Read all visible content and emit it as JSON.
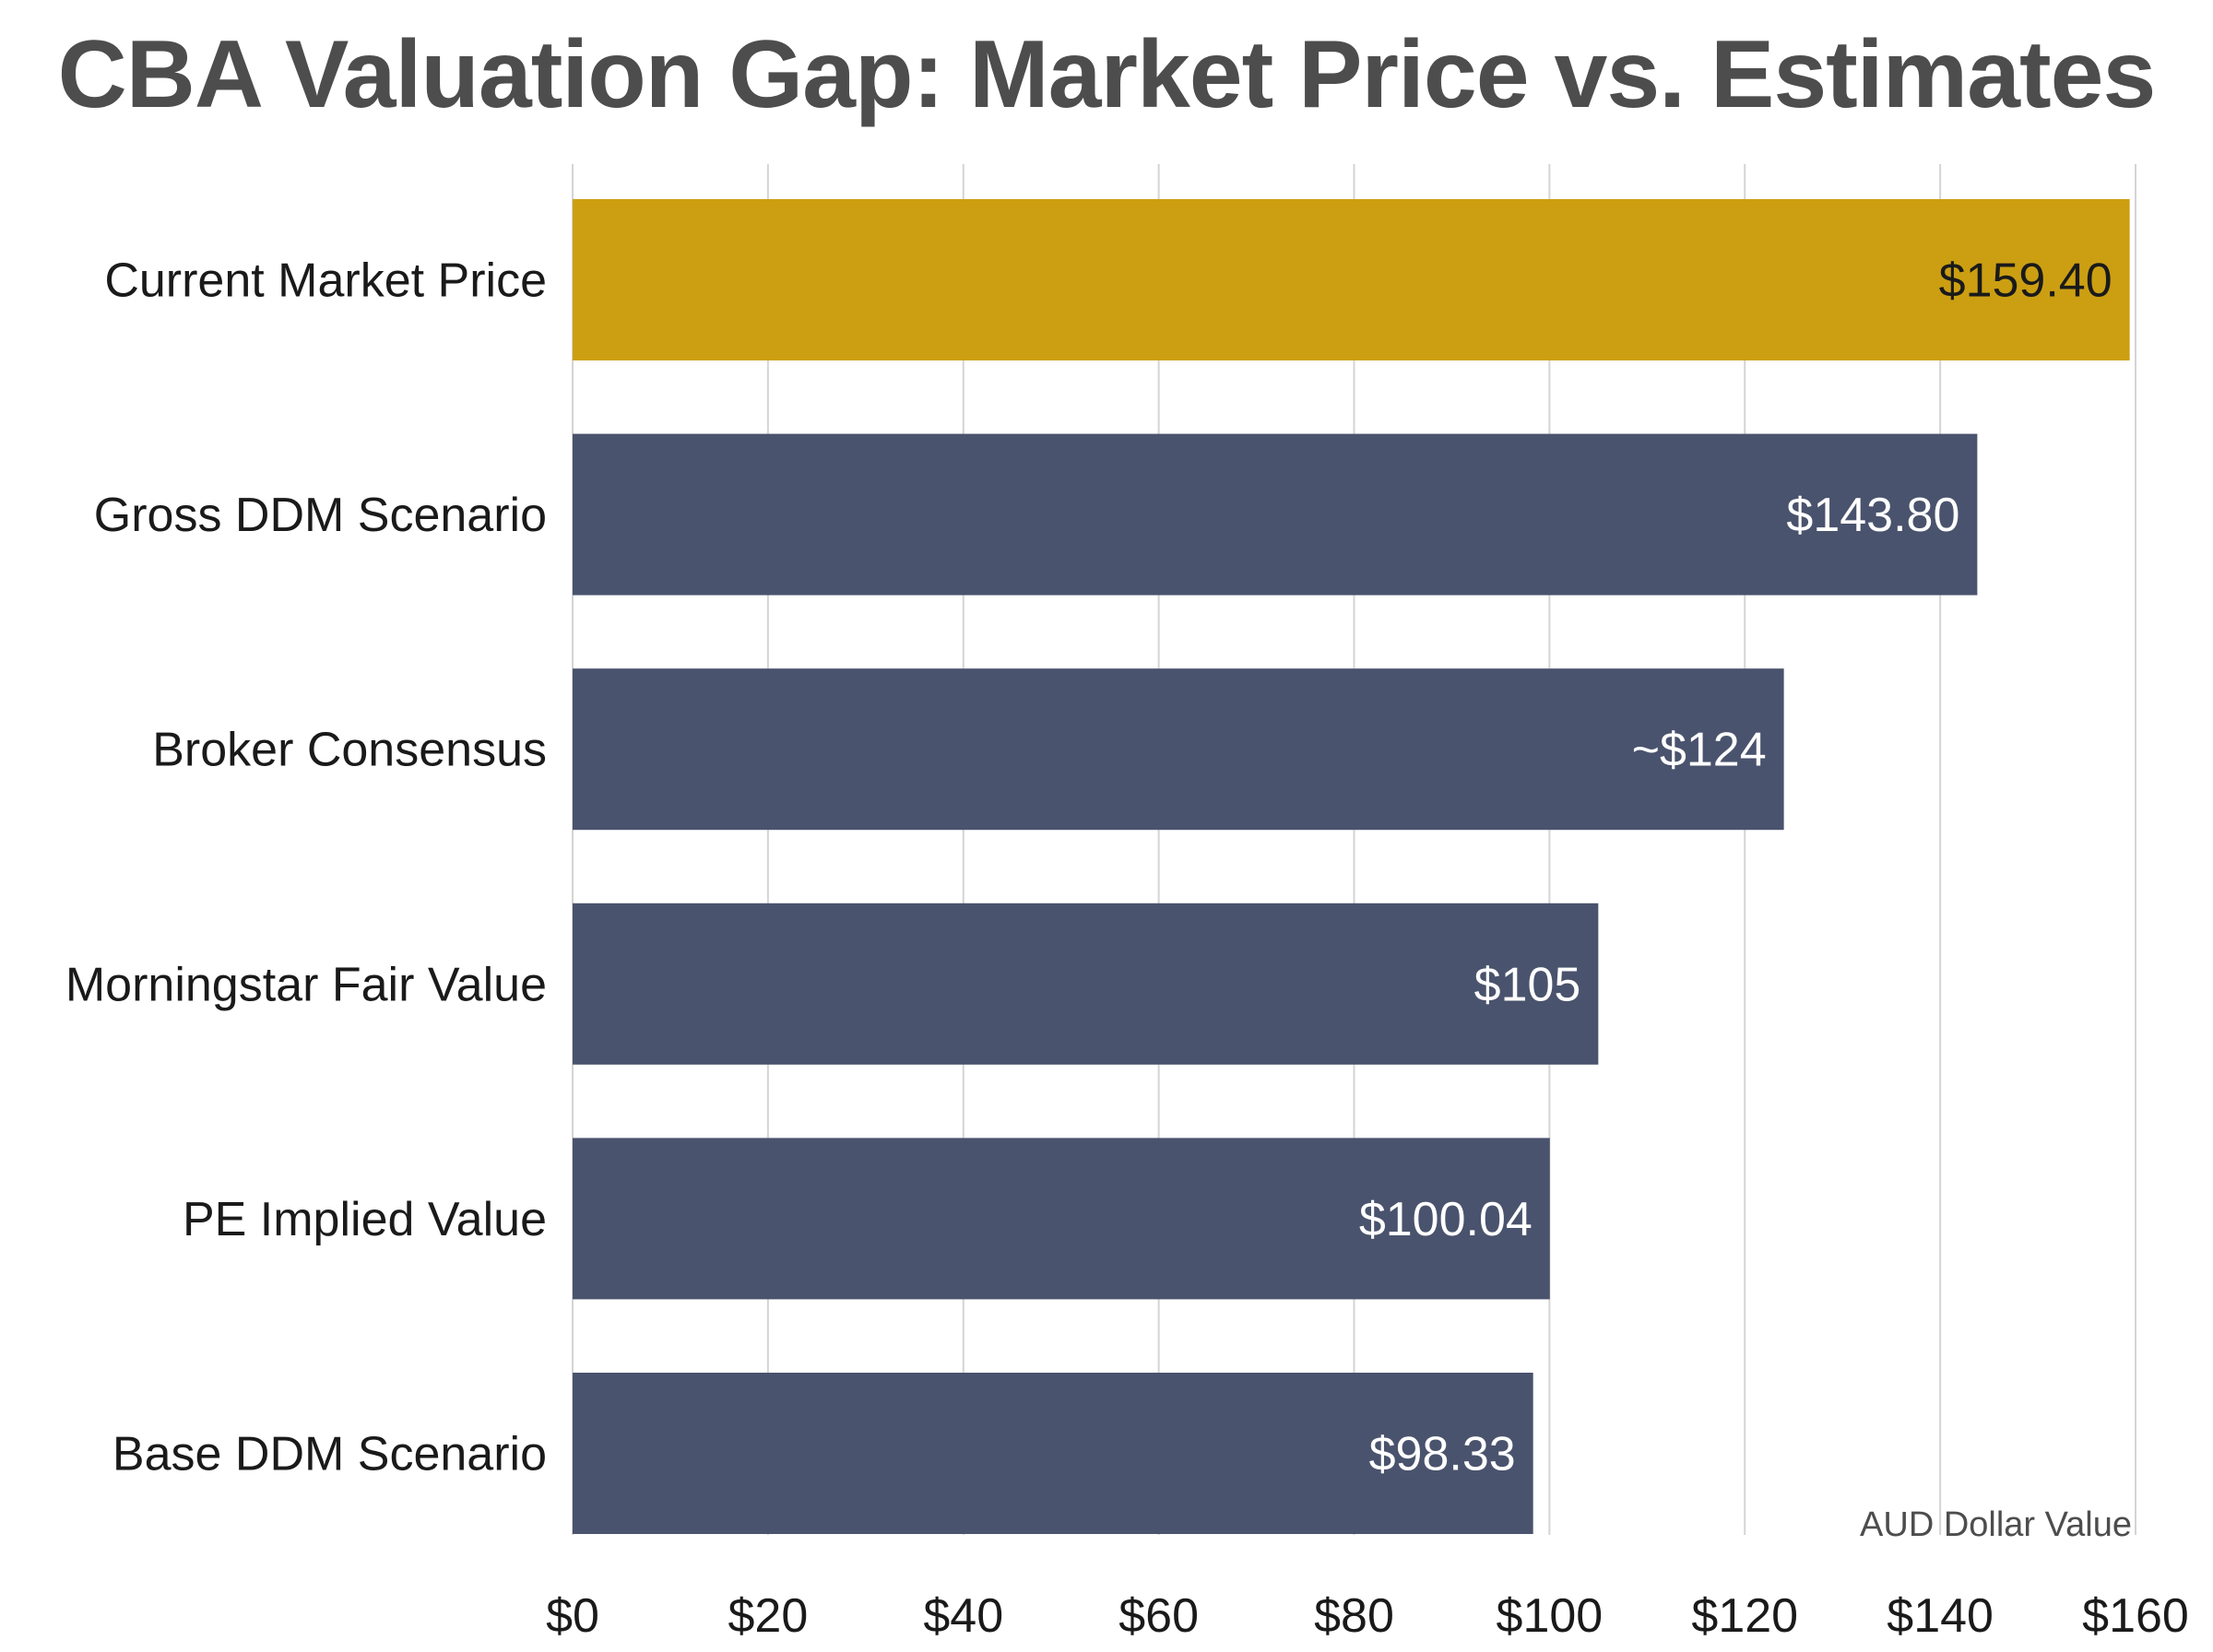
{
  "chart_data": {
    "type": "bar",
    "orientation": "horizontal",
    "title": "CBA Valuation Gap: Market Price vs. Estimates",
    "xlabel": "AUD Dollar Value",
    "xlim": [
      0,
      160
    ],
    "x_ticks": [
      0,
      20,
      40,
      60,
      80,
      100,
      120,
      140,
      160
    ],
    "x_tick_labels": [
      "$0",
      "$20",
      "$40",
      "$60",
      "$80",
      "$100",
      "$120",
      "$140",
      "$160"
    ],
    "grid": "vertical",
    "categories": [
      "Current Market Price",
      "Gross DDM Scenario",
      "Broker Consensus",
      "Morningstar Fair Value",
      "PE Implied Value",
      "Base DDM Scenario"
    ],
    "values": [
      159.4,
      143.8,
      124,
      105,
      100.04,
      98.33
    ],
    "data_labels": [
      "$159.40",
      "$143.80",
      "~$124",
      "$105",
      "$100.04",
      "$98.33"
    ],
    "colors": {
      "highlight": "#cc9f12",
      "default": "#4a536d",
      "highlight_label": "#1a1a1a",
      "default_label": "#ffffff"
    },
    "highlight_index": 0
  }
}
